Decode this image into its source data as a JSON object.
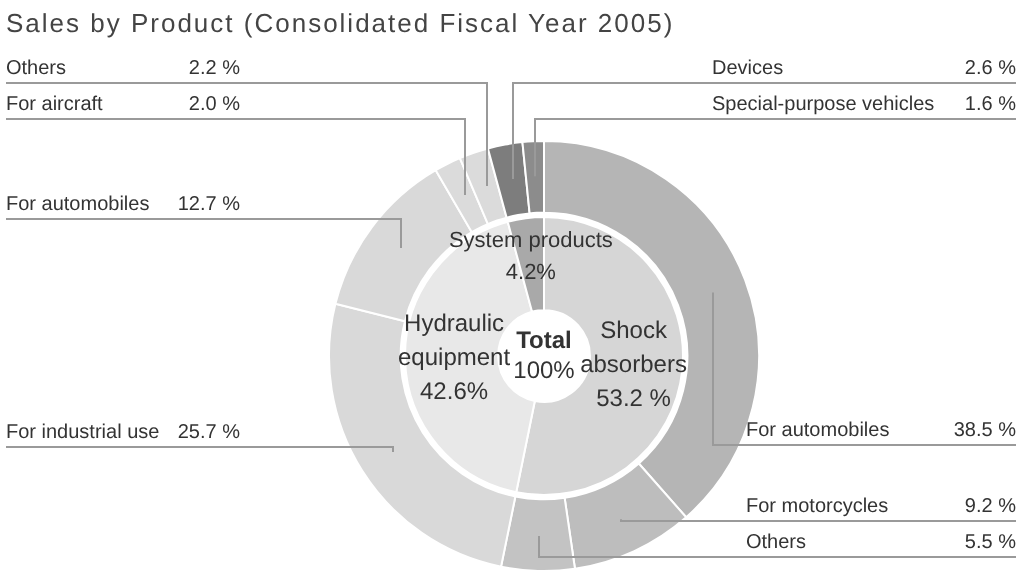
{
  "chart_data": [
    {
      "type": "donut",
      "title": "Sales by Product (Consolidated Fiscal Year 2005)",
      "categories": [
        "For automobiles",
        "For motorcycles",
        "Others",
        "For industrial use",
        "For automobiles",
        "For aircraft",
        "Others",
        "Devices",
        "Special-purpose vehicles"
      ],
      "values": [
        38.5,
        9.2,
        5.5,
        25.7,
        12.7,
        2.0,
        2.2,
        2.6,
        1.6
      ],
      "value_labels": [
        "38.5 %",
        "9.2 %",
        "5.5 %",
        "25.7 %",
        "12.7 %",
        "2.0 %",
        "2.2 %",
        "2.6 %",
        "1.6 %"
      ],
      "colors": [
        "#b5b5b5",
        "#bdbdbd",
        "#c3c3c3",
        "#d9d9d9",
        "#d9d9d9",
        "#dbdbdb",
        "#dbdbdb",
        "#7d7d7d",
        "#8c8c8c"
      ],
      "legend": false
    },
    {
      "type": "donut",
      "categories": [
        "Shock absorbers",
        "Hydraulic equipment",
        "System products"
      ],
      "values": [
        53.2,
        42.6,
        4.2
      ],
      "value_labels": [
        "53.2 %",
        "42.6%",
        "4.2%"
      ],
      "colors": [
        "#d6d6d6",
        "#e8e8e8",
        "#a9a9a9"
      ],
      "annotations": [
        "Total",
        "100%"
      ],
      "legend": false
    }
  ]
}
